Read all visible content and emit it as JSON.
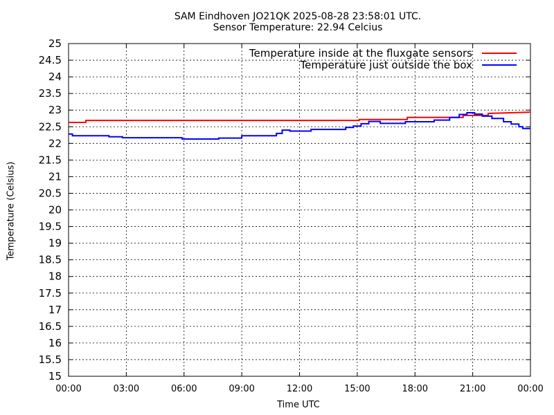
{
  "chart_data": {
    "type": "line",
    "title": "SAM Eindhoven JO21QK 2025-08-28 23:58:01 UTC.",
    "subtitle": "Sensor Temperature: 22.94 Celcius",
    "xlabel": "Time UTC",
    "ylabel": "Temperature (Celsius)",
    "xlim": [
      0,
      24
    ],
    "ylim": [
      15,
      25
    ],
    "x_ticks": [
      0,
      3,
      6,
      9,
      12,
      15,
      18,
      21,
      24
    ],
    "x_tick_labels": [
      "00:00",
      "03:00",
      "06:00",
      "09:00",
      "12:00",
      "15:00",
      "18:00",
      "21:00",
      "00:00"
    ],
    "y_ticks": [
      15,
      15.5,
      16,
      16.5,
      17,
      17.5,
      18,
      18.5,
      19,
      19.5,
      20,
      20.5,
      21,
      21.5,
      22,
      22.5,
      23,
      23.5,
      24,
      24.5,
      25
    ],
    "y_tick_labels": [
      "15",
      "15.5",
      "16",
      "16.5",
      "17",
      "17.5",
      "18",
      "18.5",
      "19",
      "19.5",
      "20",
      "20.5",
      "21",
      "21.5",
      "22",
      "22.5",
      "23",
      "23.5",
      "24",
      "24.5",
      "25"
    ],
    "grid": true,
    "legend_position": "top-right",
    "series": [
      {
        "name": "Temperature inside at the fluxgate sensors",
        "color": "#ff0000",
        "x": [
          0,
          0.9,
          0.9,
          15.1,
          15.1,
          17.6,
          17.6,
          20.5,
          20.5,
          21.8,
          21.8,
          24
        ],
        "y": [
          22.63,
          22.63,
          22.69,
          22.69,
          22.72,
          22.72,
          22.78,
          22.78,
          22.84,
          22.84,
          22.9,
          22.94
        ]
      },
      {
        "name": "Temperature just outside the box",
        "color": "#0000ff",
        "x": [
          0,
          0.2,
          0.2,
          2.1,
          2.1,
          2.8,
          2.8,
          5.9,
          5.9,
          7.8,
          7.8,
          9.0,
          9.0,
          10.8,
          10.8,
          11.1,
          11.1,
          11.5,
          11.5,
          12.6,
          12.6,
          14.4,
          14.4,
          14.8,
          14.8,
          15.2,
          15.2,
          15.6,
          15.6,
          16.2,
          16.2,
          17.5,
          17.5,
          19.0,
          19.0,
          19.8,
          19.8,
          20.3,
          20.3,
          20.7,
          20.7,
          21.1,
          21.1,
          21.5,
          21.5,
          22.0,
          22.0,
          22.6,
          22.6,
          23.0,
          23.0,
          23.4,
          23.4,
          23.6,
          23.6,
          24
        ],
        "y": [
          22.28,
          22.28,
          22.23,
          22.23,
          22.2,
          22.2,
          22.17,
          22.17,
          22.13,
          22.13,
          22.16,
          22.16,
          22.23,
          22.23,
          22.3,
          22.3,
          22.4,
          22.4,
          22.37,
          22.37,
          22.42,
          22.42,
          22.48,
          22.48,
          22.52,
          22.52,
          22.59,
          22.59,
          22.66,
          22.66,
          22.6,
          22.6,
          22.65,
          22.65,
          22.7,
          22.7,
          22.78,
          22.78,
          22.87,
          22.87,
          22.92,
          22.92,
          22.88,
          22.88,
          22.82,
          22.82,
          22.75,
          22.75,
          22.65,
          22.65,
          22.58,
          22.58,
          22.5,
          22.5,
          22.45,
          22.45
        ]
      }
    ]
  }
}
